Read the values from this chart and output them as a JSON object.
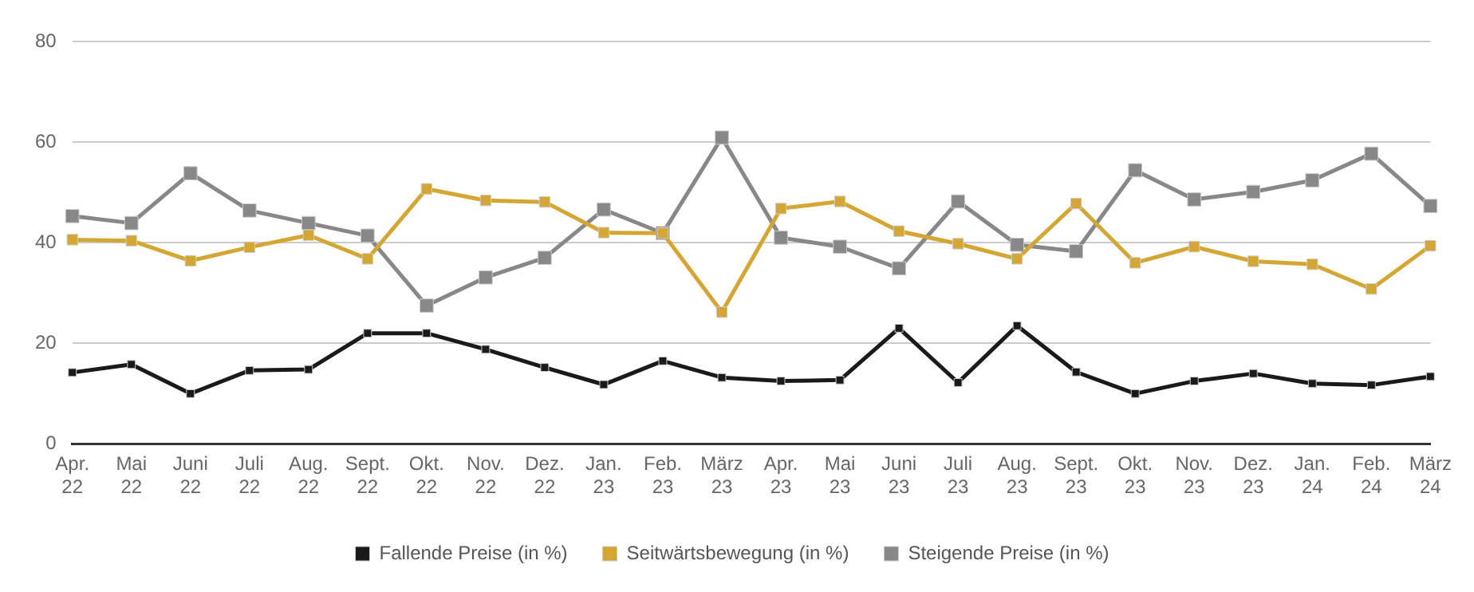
{
  "chart_data": {
    "type": "line",
    "categories": [
      "Apr. 22",
      "Mai 22",
      "Juni 22",
      "Juli 22",
      "Aug. 22",
      "Sept. 22",
      "Okt. 22",
      "Nov. 22",
      "Dez. 22",
      "Jan. 23",
      "Feb. 23",
      "März 23",
      "Apr. 23",
      "Mai 23",
      "Juni 23",
      "Juli 23",
      "Aug. 23",
      "Sept. 23",
      "Okt. 23",
      "Nov. 23",
      "Dez. 23",
      "Jan. 24",
      "Feb. 24",
      "März 24"
    ],
    "series": [
      {
        "name": "Fallende Preise (in %)",
        "color": "#1a1a1a",
        "values": [
          14.2,
          15.8,
          10,
          14.6,
          14.8,
          22,
          22,
          18.8,
          15.2,
          11.8,
          16.5,
          13.2,
          12.5,
          12.7,
          23,
          12.2,
          23.5,
          14.3,
          10,
          12.5,
          14,
          12,
          11.7,
          13.4
        ]
      },
      {
        "name": "Seitwärtsbewegung (in %)",
        "color": "#d4a634",
        "values": [
          40.6,
          40.4,
          36.4,
          39.1,
          41.5,
          36.8,
          50.7,
          48.4,
          48.1,
          42,
          41.9,
          26.2,
          46.8,
          48.2,
          42.3,
          39.8,
          36.8,
          47.8,
          36,
          39.2,
          36.3,
          35.7,
          30.8,
          39.4
        ]
      },
      {
        "name": "Steigende Preise (in %)",
        "color": "#888888",
        "values": [
          45.3,
          43.9,
          53.8,
          46.4,
          43.9,
          41.4,
          27.5,
          33.1,
          37,
          46.6,
          41.9,
          60.9,
          41,
          39.2,
          34.9,
          48.2,
          39.6,
          38.3,
          54.4,
          48.6,
          50.1,
          52.4,
          57.7,
          47.3
        ]
      }
    ],
    "ylim": [
      0,
      80
    ],
    "yticks": [
      0,
      20,
      40,
      60,
      80
    ],
    "grid": "y",
    "legend": "bottom",
    "marker": "square",
    "line_style": "solid"
  }
}
